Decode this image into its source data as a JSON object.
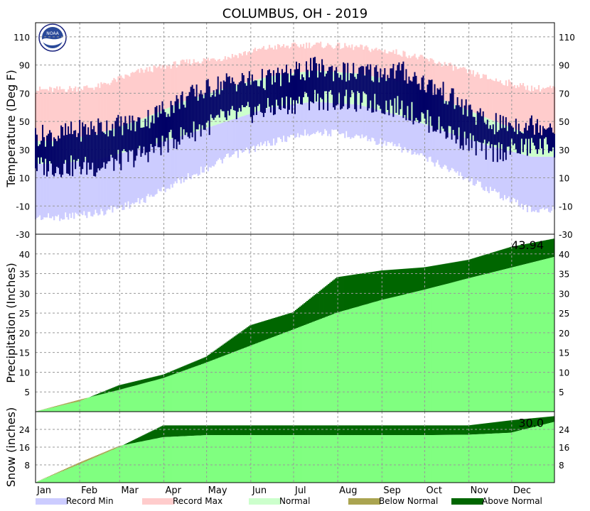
{
  "title": "COLUMBUS, OH - 2019",
  "logo_text": "NOAA",
  "months": [
    "Jan",
    "Feb",
    "Mar",
    "Apr",
    "May",
    "Jun",
    "Jul",
    "Aug",
    "Sep",
    "Oct",
    "Nov",
    "Dec"
  ],
  "legend": [
    {
      "label": "Record Min",
      "color": "#ccccff"
    },
    {
      "label": "Record Max",
      "color": "#ffcccc"
    },
    {
      "label": "Normal",
      "color": "#ccffcc"
    },
    {
      "label": "Below Normal",
      "color": "#aaa450"
    },
    {
      "label": "Above Normal",
      "color": "#006600"
    }
  ],
  "colors": {
    "record_min": "#ccccff",
    "record_max": "#ffcccc",
    "normal": "#ccffcc",
    "observed": "#000066",
    "normal_precip": "#80ff80",
    "above_normal": "#006600",
    "below_normal": "#aaa450",
    "grid": "#999999"
  },
  "chart_data": [
    {
      "type": "bar",
      "ylabel": "Temperature (Deg F)",
      "ylim": [
        -30,
        120
      ],
      "yticks": [
        -30,
        -10,
        10,
        30,
        50,
        70,
        90,
        110
      ],
      "grid": true,
      "monthly_normal_f": {
        "low": [
          20,
          23,
          31,
          40,
          50,
          60,
          64,
          62,
          54,
          43,
          33,
          25
        ],
        "high": [
          36,
          41,
          51,
          64,
          74,
          82,
          86,
          84,
          78,
          65,
          52,
          40
        ]
      },
      "monthly_record_f": {
        "min": [
          -15,
          -12,
          -4,
          12,
          27,
          38,
          46,
          43,
          34,
          21,
          5,
          -10
        ],
        "max": [
          70,
          72,
          83,
          89,
          93,
          100,
          102,
          100,
          96,
          88,
          78,
          71
        ]
      },
      "monthly_observed_f": {
        "low": [
          18,
          18,
          26,
          40,
          53,
          59,
          66,
          64,
          60,
          44,
          28,
          32
        ],
        "high": [
          40,
          46,
          49,
          66,
          78,
          80,
          88,
          84,
          86,
          70,
          48,
          48
        ]
      }
    },
    {
      "type": "area",
      "ylabel": "Precipitation (Inches)",
      "ylim": [
        0,
        45
      ],
      "yticks": [
        5,
        10,
        15,
        20,
        25,
        30,
        35,
        40
      ],
      "grid": true,
      "annotation": "43.94",
      "cumulative_month_end": {
        "observed": [
          2.6,
          6.7,
          9.4,
          13.9,
          21.9,
          25.2,
          34.1,
          35.8,
          36.6,
          38.5,
          41.8,
          43.94
        ],
        "normal": [
          3.0,
          5.5,
          8.5,
          12.4,
          16.7,
          20.8,
          25.1,
          28.3,
          30.9,
          33.8,
          36.5,
          39.3
        ]
      }
    },
    {
      "type": "area",
      "ylabel": "Snow (inches)",
      "ylim": [
        0,
        32
      ],
      "yticks": [
        8,
        16,
        24
      ],
      "grid": true,
      "annotation": "30.0",
      "cumulative_month_end": {
        "observed": [
          8.2,
          16.0,
          25.8,
          25.8,
          25.8,
          25.8,
          25.8,
          25.8,
          25.8,
          25.8,
          28.1,
          30.0
        ],
        "normal": [
          9.0,
          16.5,
          20.5,
          21.4,
          21.4,
          21.4,
          21.4,
          21.4,
          21.4,
          21.6,
          22.5,
          27.5
        ]
      }
    }
  ]
}
